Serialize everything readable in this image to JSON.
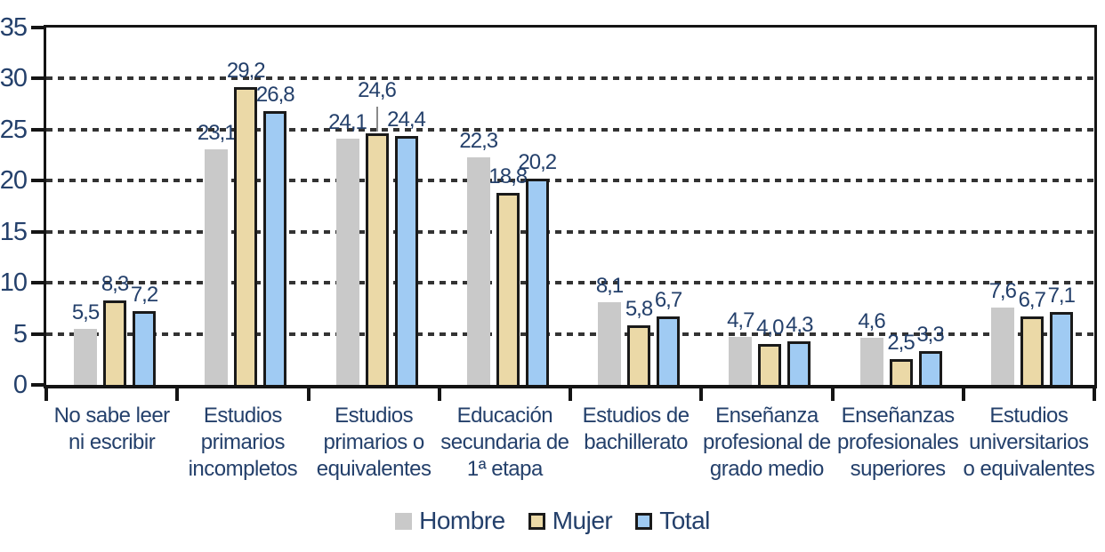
{
  "chart_data": {
    "type": "bar",
    "title": "",
    "xlabel": "",
    "ylabel": "",
    "ylim": [
      0,
      35
    ],
    "y_tick_step": 5,
    "grid": "dashed-horizontal",
    "legend_position": "bottom-center",
    "decimal_separator": ",",
    "categories": [
      "No sabe leer\nni escribir",
      "Estudios\nprimarios\nincompletos",
      "Estudios\nprimarios o\nequivalentes",
      "Educación\nsecundaria de\n1ª etapa",
      "Estudios de\nbachillerato",
      "Enseñanza\nprofesional de\ngrado medio",
      "Enseñanzas\nprofesionales\nsuperiores",
      "Estudios\nuniversitarios\no equivalentes"
    ],
    "series": [
      {
        "name": "Hombre",
        "color": "#C9C9C9",
        "border_color": null,
        "values": [
          5.5,
          23.1,
          24.1,
          22.3,
          8.1,
          4.7,
          4.6,
          7.6
        ]
      },
      {
        "name": "Mujer",
        "color": "#EBD9A7",
        "border_color": "#1a1a1a",
        "values": [
          8.3,
          29.2,
          24.6,
          18.8,
          5.8,
          4.0,
          2.5,
          6.7
        ],
        "raised_label_indices": [
          2
        ]
      },
      {
        "name": "Total",
        "color": "#A0CBF3",
        "border_color": "#1a1a1a",
        "values": [
          7.2,
          26.8,
          24.4,
          20.2,
          6.7,
          4.3,
          3.3,
          7.1
        ]
      }
    ]
  },
  "y_axis": {
    "ticks": [
      "0",
      "5",
      "10",
      "15",
      "20",
      "25",
      "30",
      "35"
    ]
  },
  "colors": {
    "text": "#24406B",
    "axis": "#141414",
    "gridline": "#333333",
    "background": "#FFFFFF",
    "bar_border": "#1a1a1a"
  }
}
